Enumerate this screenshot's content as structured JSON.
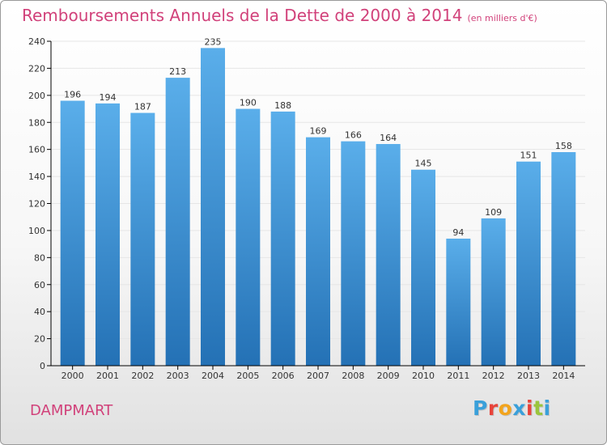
{
  "colors": {
    "title": "#d1417a",
    "bar_top": "#5aaeea",
    "bar_bottom": "#2471b5",
    "grid": "#e6e6e6",
    "axis": "#000000",
    "logo": [
      "#3aa0da",
      "#e8433a",
      "#f2a41d",
      "#3aa0da",
      "#e8433a",
      "#9bc53d"
    ]
  },
  "title": "Remboursements Annuels de la Dette de 2000 à 2014",
  "title_unit": "(en milliers d'€)",
  "city": "DAMPMART",
  "logo_text": "Proxiti",
  "chart_data": {
    "type": "bar",
    "title": "Remboursements Annuels de la Dette de 2000 à 2014",
    "xlabel": "",
    "ylabel": "",
    "categories": [
      "2000",
      "2001",
      "2002",
      "2003",
      "2004",
      "2005",
      "2006",
      "2007",
      "2008",
      "2009",
      "2010",
      "2011",
      "2012",
      "2013",
      "2014"
    ],
    "values": [
      196,
      194,
      187,
      213,
      235,
      190,
      188,
      169,
      166,
      164,
      145,
      94,
      109,
      151,
      158
    ],
    "ylim": [
      0,
      240
    ],
    "yticks": [
      0,
      20,
      40,
      60,
      80,
      100,
      120,
      140,
      160,
      180,
      200,
      220,
      240
    ],
    "grid": true
  }
}
